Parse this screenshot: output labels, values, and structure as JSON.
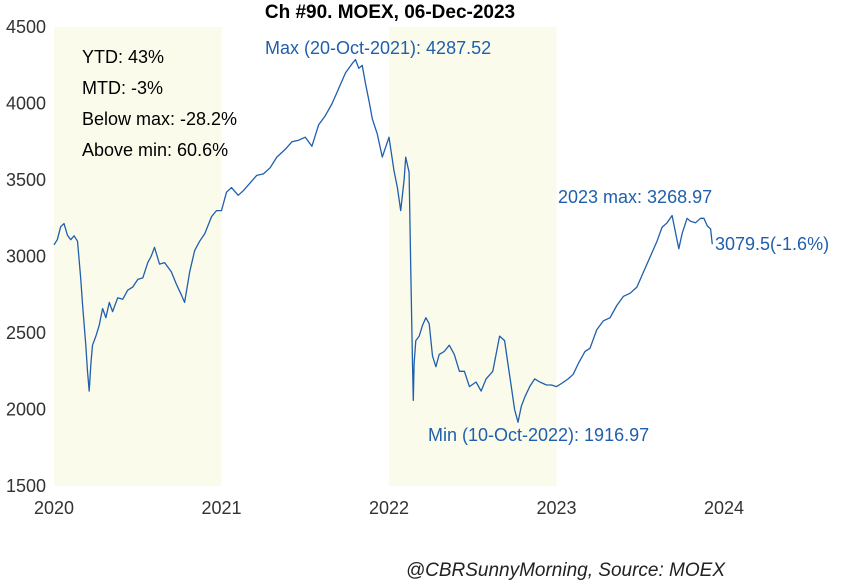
{
  "chart_data": {
    "type": "line",
    "title": "Ch #90. MOEX, 06-Dec-2023",
    "xlabel": "",
    "ylabel": "",
    "xlim": [
      2020.0,
      2024.1
    ],
    "ylim": [
      1500,
      4500
    ],
    "y_ticks": [
      1500,
      2000,
      2500,
      3000,
      3500,
      4000,
      4500
    ],
    "x_ticks": [
      {
        "value": 2020,
        "label": "2020"
      },
      {
        "value": 2021,
        "label": "2021"
      },
      {
        "value": 2022,
        "label": "2022"
      },
      {
        "value": 2023,
        "label": "2023"
      },
      {
        "value": 2024,
        "label": "2024"
      }
    ],
    "grid": false,
    "shaded_years": [
      [
        2020,
        2021
      ],
      [
        2022,
        2023
      ]
    ],
    "colors": {
      "line": "#1f5fad",
      "shade": "#fbfbec",
      "annotation": "#1f5fad"
    },
    "stats": [
      {
        "label": "YTD: 43%"
      },
      {
        "label": "MTD: -3%"
      },
      {
        "label": "Below max: -28.2%"
      },
      {
        "label": "Above min: 60.6%"
      }
    ],
    "annotations": {
      "max": {
        "text": "Max (20-Oct-2021): 4287.52",
        "x": 2021.8,
        "y": 4287.52
      },
      "min": {
        "text": "Min (10-Oct-2022): 1916.97",
        "x": 2022.77,
        "y": 1916.97
      },
      "year_max": {
        "text": "2023 max: 3268.97",
        "x": 2023.7,
        "y": 3268.97
      },
      "last": {
        "text": "3079.5(-1.6%)",
        "x": 2023.93,
        "y": 3079.5
      }
    },
    "credit": "@CBRSunnyMorning, Source: MOEX",
    "series": [
      {
        "values": [
          [
            2020.0,
            3076
          ],
          [
            2020.02,
            3110
          ],
          [
            2020.04,
            3195
          ],
          [
            2020.06,
            3215
          ],
          [
            2020.08,
            3140
          ],
          [
            2020.1,
            3110
          ],
          [
            2020.12,
            3135
          ],
          [
            2020.14,
            3100
          ],
          [
            2020.16,
            2850
          ],
          [
            2020.17,
            2690
          ],
          [
            2020.19,
            2420
          ],
          [
            2020.2,
            2250
          ],
          [
            2020.21,
            2120
          ],
          [
            2020.22,
            2300
          ],
          [
            2020.23,
            2420
          ],
          [
            2020.25,
            2480
          ],
          [
            2020.27,
            2550
          ],
          [
            2020.29,
            2660
          ],
          [
            2020.31,
            2600
          ],
          [
            2020.33,
            2700
          ],
          [
            2020.35,
            2640
          ],
          [
            2020.38,
            2730
          ],
          [
            2020.41,
            2720
          ],
          [
            2020.44,
            2780
          ],
          [
            2020.47,
            2800
          ],
          [
            2020.5,
            2850
          ],
          [
            2020.53,
            2860
          ],
          [
            2020.56,
            2960
          ],
          [
            2020.58,
            3000
          ],
          [
            2020.6,
            3060
          ],
          [
            2020.63,
            2950
          ],
          [
            2020.66,
            2960
          ],
          [
            2020.7,
            2900
          ],
          [
            2020.73,
            2820
          ],
          [
            2020.76,
            2750
          ],
          [
            2020.78,
            2700
          ],
          [
            2020.81,
            2900
          ],
          [
            2020.84,
            3040
          ],
          [
            2020.87,
            3100
          ],
          [
            2020.9,
            3150
          ],
          [
            2020.94,
            3260
          ],
          [
            2020.97,
            3300
          ],
          [
            2021.0,
            3300
          ],
          [
            2021.03,
            3420
          ],
          [
            2021.06,
            3450
          ],
          [
            2021.1,
            3400
          ],
          [
            2021.13,
            3430
          ],
          [
            2021.17,
            3480
          ],
          [
            2021.21,
            3530
          ],
          [
            2021.25,
            3540
          ],
          [
            2021.29,
            3580
          ],
          [
            2021.33,
            3650
          ],
          [
            2021.38,
            3700
          ],
          [
            2021.42,
            3750
          ],
          [
            2021.46,
            3760
          ],
          [
            2021.5,
            3780
          ],
          [
            2021.54,
            3720
          ],
          [
            2021.58,
            3860
          ],
          [
            2021.62,
            3920
          ],
          [
            2021.66,
            4000
          ],
          [
            2021.7,
            4100
          ],
          [
            2021.74,
            4200
          ],
          [
            2021.78,
            4260
          ],
          [
            2021.8,
            4287
          ],
          [
            2021.82,
            4230
          ],
          [
            2021.84,
            4250
          ],
          [
            2021.86,
            4130
          ],
          [
            2021.88,
            4020
          ],
          [
            2021.9,
            3900
          ],
          [
            2021.93,
            3800
          ],
          [
            2021.96,
            3650
          ],
          [
            2022.0,
            3780
          ],
          [
            2022.03,
            3560
          ],
          [
            2022.05,
            3450
          ],
          [
            2022.07,
            3300
          ],
          [
            2022.09,
            3500
          ],
          [
            2022.1,
            3650
          ],
          [
            2022.12,
            3550
          ],
          [
            2022.13,
            2900
          ],
          [
            2022.14,
            2300
          ],
          [
            2022.145,
            2060
          ],
          [
            2022.15,
            2300
          ],
          [
            2022.16,
            2450
          ],
          [
            2022.18,
            2480
          ],
          [
            2022.2,
            2550
          ],
          [
            2022.22,
            2600
          ],
          [
            2022.24,
            2560
          ],
          [
            2022.26,
            2350
          ],
          [
            2022.28,
            2280
          ],
          [
            2022.3,
            2360
          ],
          [
            2022.33,
            2380
          ],
          [
            2022.36,
            2420
          ],
          [
            2022.39,
            2360
          ],
          [
            2022.42,
            2250
          ],
          [
            2022.45,
            2250
          ],
          [
            2022.48,
            2150
          ],
          [
            2022.52,
            2180
          ],
          [
            2022.55,
            2120
          ],
          [
            2022.58,
            2200
          ],
          [
            2022.62,
            2250
          ],
          [
            2022.66,
            2480
          ],
          [
            2022.69,
            2450
          ],
          [
            2022.71,
            2300
          ],
          [
            2022.73,
            2150
          ],
          [
            2022.75,
            2000
          ],
          [
            2022.77,
            1917
          ],
          [
            2022.79,
            2020
          ],
          [
            2022.81,
            2080
          ],
          [
            2022.84,
            2150
          ],
          [
            2022.87,
            2200
          ],
          [
            2022.9,
            2180
          ],
          [
            2022.94,
            2160
          ],
          [
            2022.97,
            2160
          ],
          [
            2023.0,
            2150
          ],
          [
            2023.03,
            2170
          ],
          [
            2023.07,
            2200
          ],
          [
            2023.1,
            2230
          ],
          [
            2023.13,
            2300
          ],
          [
            2023.17,
            2380
          ],
          [
            2023.2,
            2400
          ],
          [
            2023.24,
            2520
          ],
          [
            2023.28,
            2580
          ],
          [
            2023.32,
            2600
          ],
          [
            2023.36,
            2680
          ],
          [
            2023.4,
            2740
          ],
          [
            2023.44,
            2760
          ],
          [
            2023.48,
            2800
          ],
          [
            2023.52,
            2900
          ],
          [
            2023.56,
            3000
          ],
          [
            2023.6,
            3100
          ],
          [
            2023.63,
            3190
          ],
          [
            2023.66,
            3220
          ],
          [
            2023.69,
            3268
          ],
          [
            2023.71,
            3160
          ],
          [
            2023.73,
            3050
          ],
          [
            2023.75,
            3150
          ],
          [
            2023.78,
            3250
          ],
          [
            2023.8,
            3230
          ],
          [
            2023.83,
            3220
          ],
          [
            2023.86,
            3250
          ],
          [
            2023.88,
            3250
          ],
          [
            2023.9,
            3200
          ],
          [
            2023.92,
            3180
          ],
          [
            2023.93,
            3079.5
          ]
        ]
      }
    ]
  }
}
